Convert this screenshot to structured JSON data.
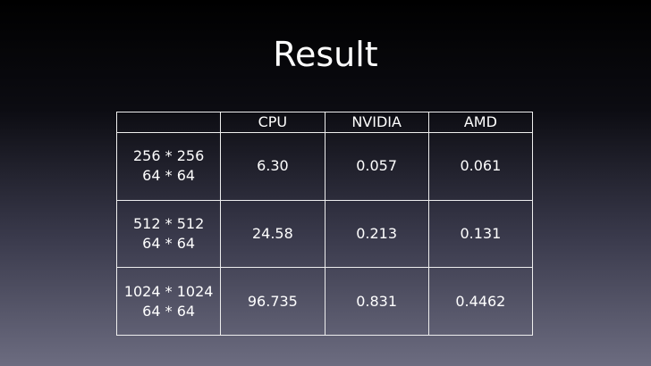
{
  "title": "Result",
  "table": {
    "columns": [
      "CPU",
      "NVIDIA",
      "AMD"
    ],
    "rows": [
      {
        "label": [
          "256 * 256",
          "64 * 64"
        ],
        "cells": [
          "6.30",
          "0.057",
          "0.061"
        ]
      },
      {
        "label": [
          "512 * 512",
          "64 * 64"
        ],
        "cells": [
          "24.58",
          "0.213",
          "0.131"
        ]
      },
      {
        "label": [
          "1024 * 1024",
          "64 * 64"
        ],
        "cells": [
          "96.735",
          "0.831",
          "0.4462"
        ]
      }
    ]
  }
}
